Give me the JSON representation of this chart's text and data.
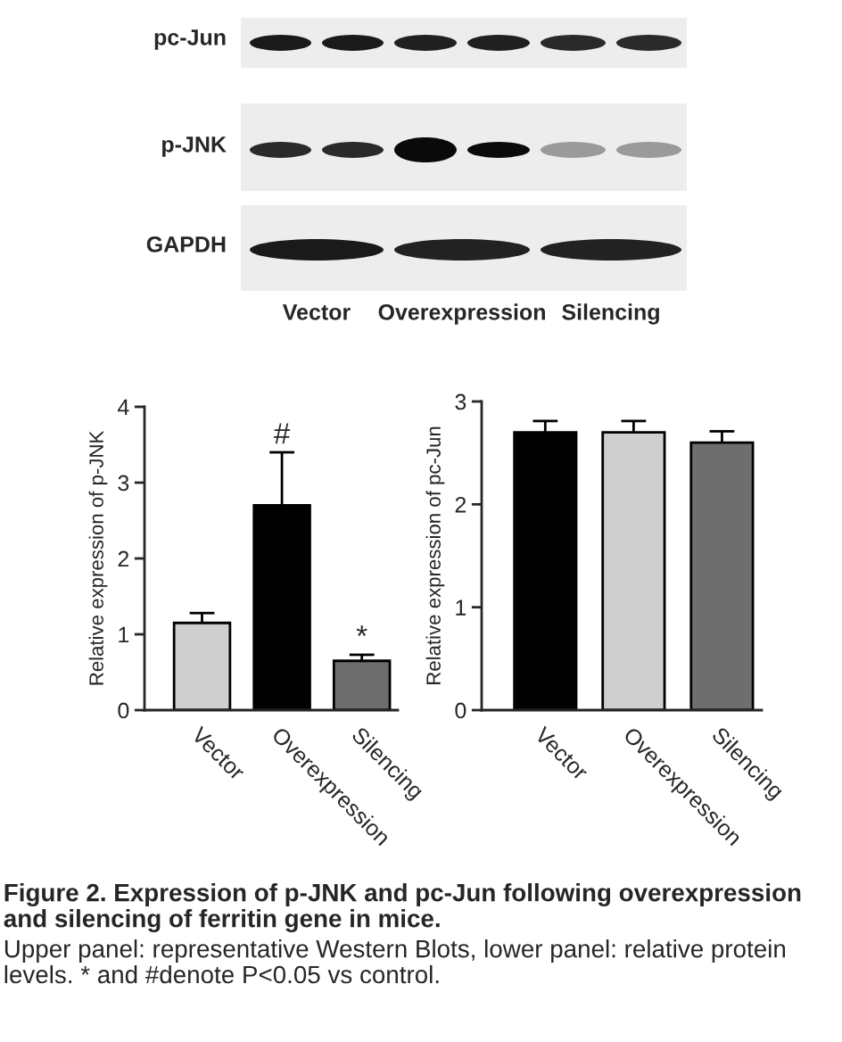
{
  "chart_data": [
    {
      "type": "other",
      "categories": [
        "Vector",
        "Overexpression",
        "Silencing"
      ],
      "annotations": [
        "pc-Jun",
        "p-JNK",
        "GAPDH"
      ]
    },
    {
      "type": "bar",
      "categories": [
        "Vector",
        "Overexpression",
        "Silencing"
      ],
      "values": [
        1.15,
        2.7,
        0.65
      ],
      "colors": [
        "#cfcfcf",
        "#000000",
        "#6e6e6e"
      ],
      "errors": [
        0.13,
        0.7,
        0.08
      ],
      "ylabel": "Relative expression of p-JNK",
      "ylim": [
        0,
        4
      ],
      "yticks": [
        0,
        1,
        2,
        3,
        4
      ],
      "annotations": [
        {
          "text": "#",
          "x": "Overexpression",
          "y": 3.4
        },
        {
          "text": "*",
          "x": "Silencing",
          "y": 0.73
        }
      ]
    },
    {
      "type": "bar",
      "categories": [
        "Vector",
        "Overexpression",
        "Silencing"
      ],
      "values": [
        2.7,
        2.7,
        2.6
      ],
      "colors": [
        "#000000",
        "#cfcfcf",
        "#6e6e6e"
      ],
      "errors": [
        0.11,
        0.11,
        0.11
      ],
      "ylabel": "Relative expression of pc-Jun",
      "ylim": [
        0,
        3
      ],
      "yticks": [
        0,
        1,
        2,
        3
      ]
    },
    {
      "type": "other",
      "title": "Figure 2. Expression of p-JNK and pc-Jun following overexpression and silencing of ferritin gene in mice.",
      "annotations": [
        "Upper panel: representative Western Blots, lower panel: relative protein levels. * and #denote P<0.05 vs control."
      ]
    }
  ]
}
